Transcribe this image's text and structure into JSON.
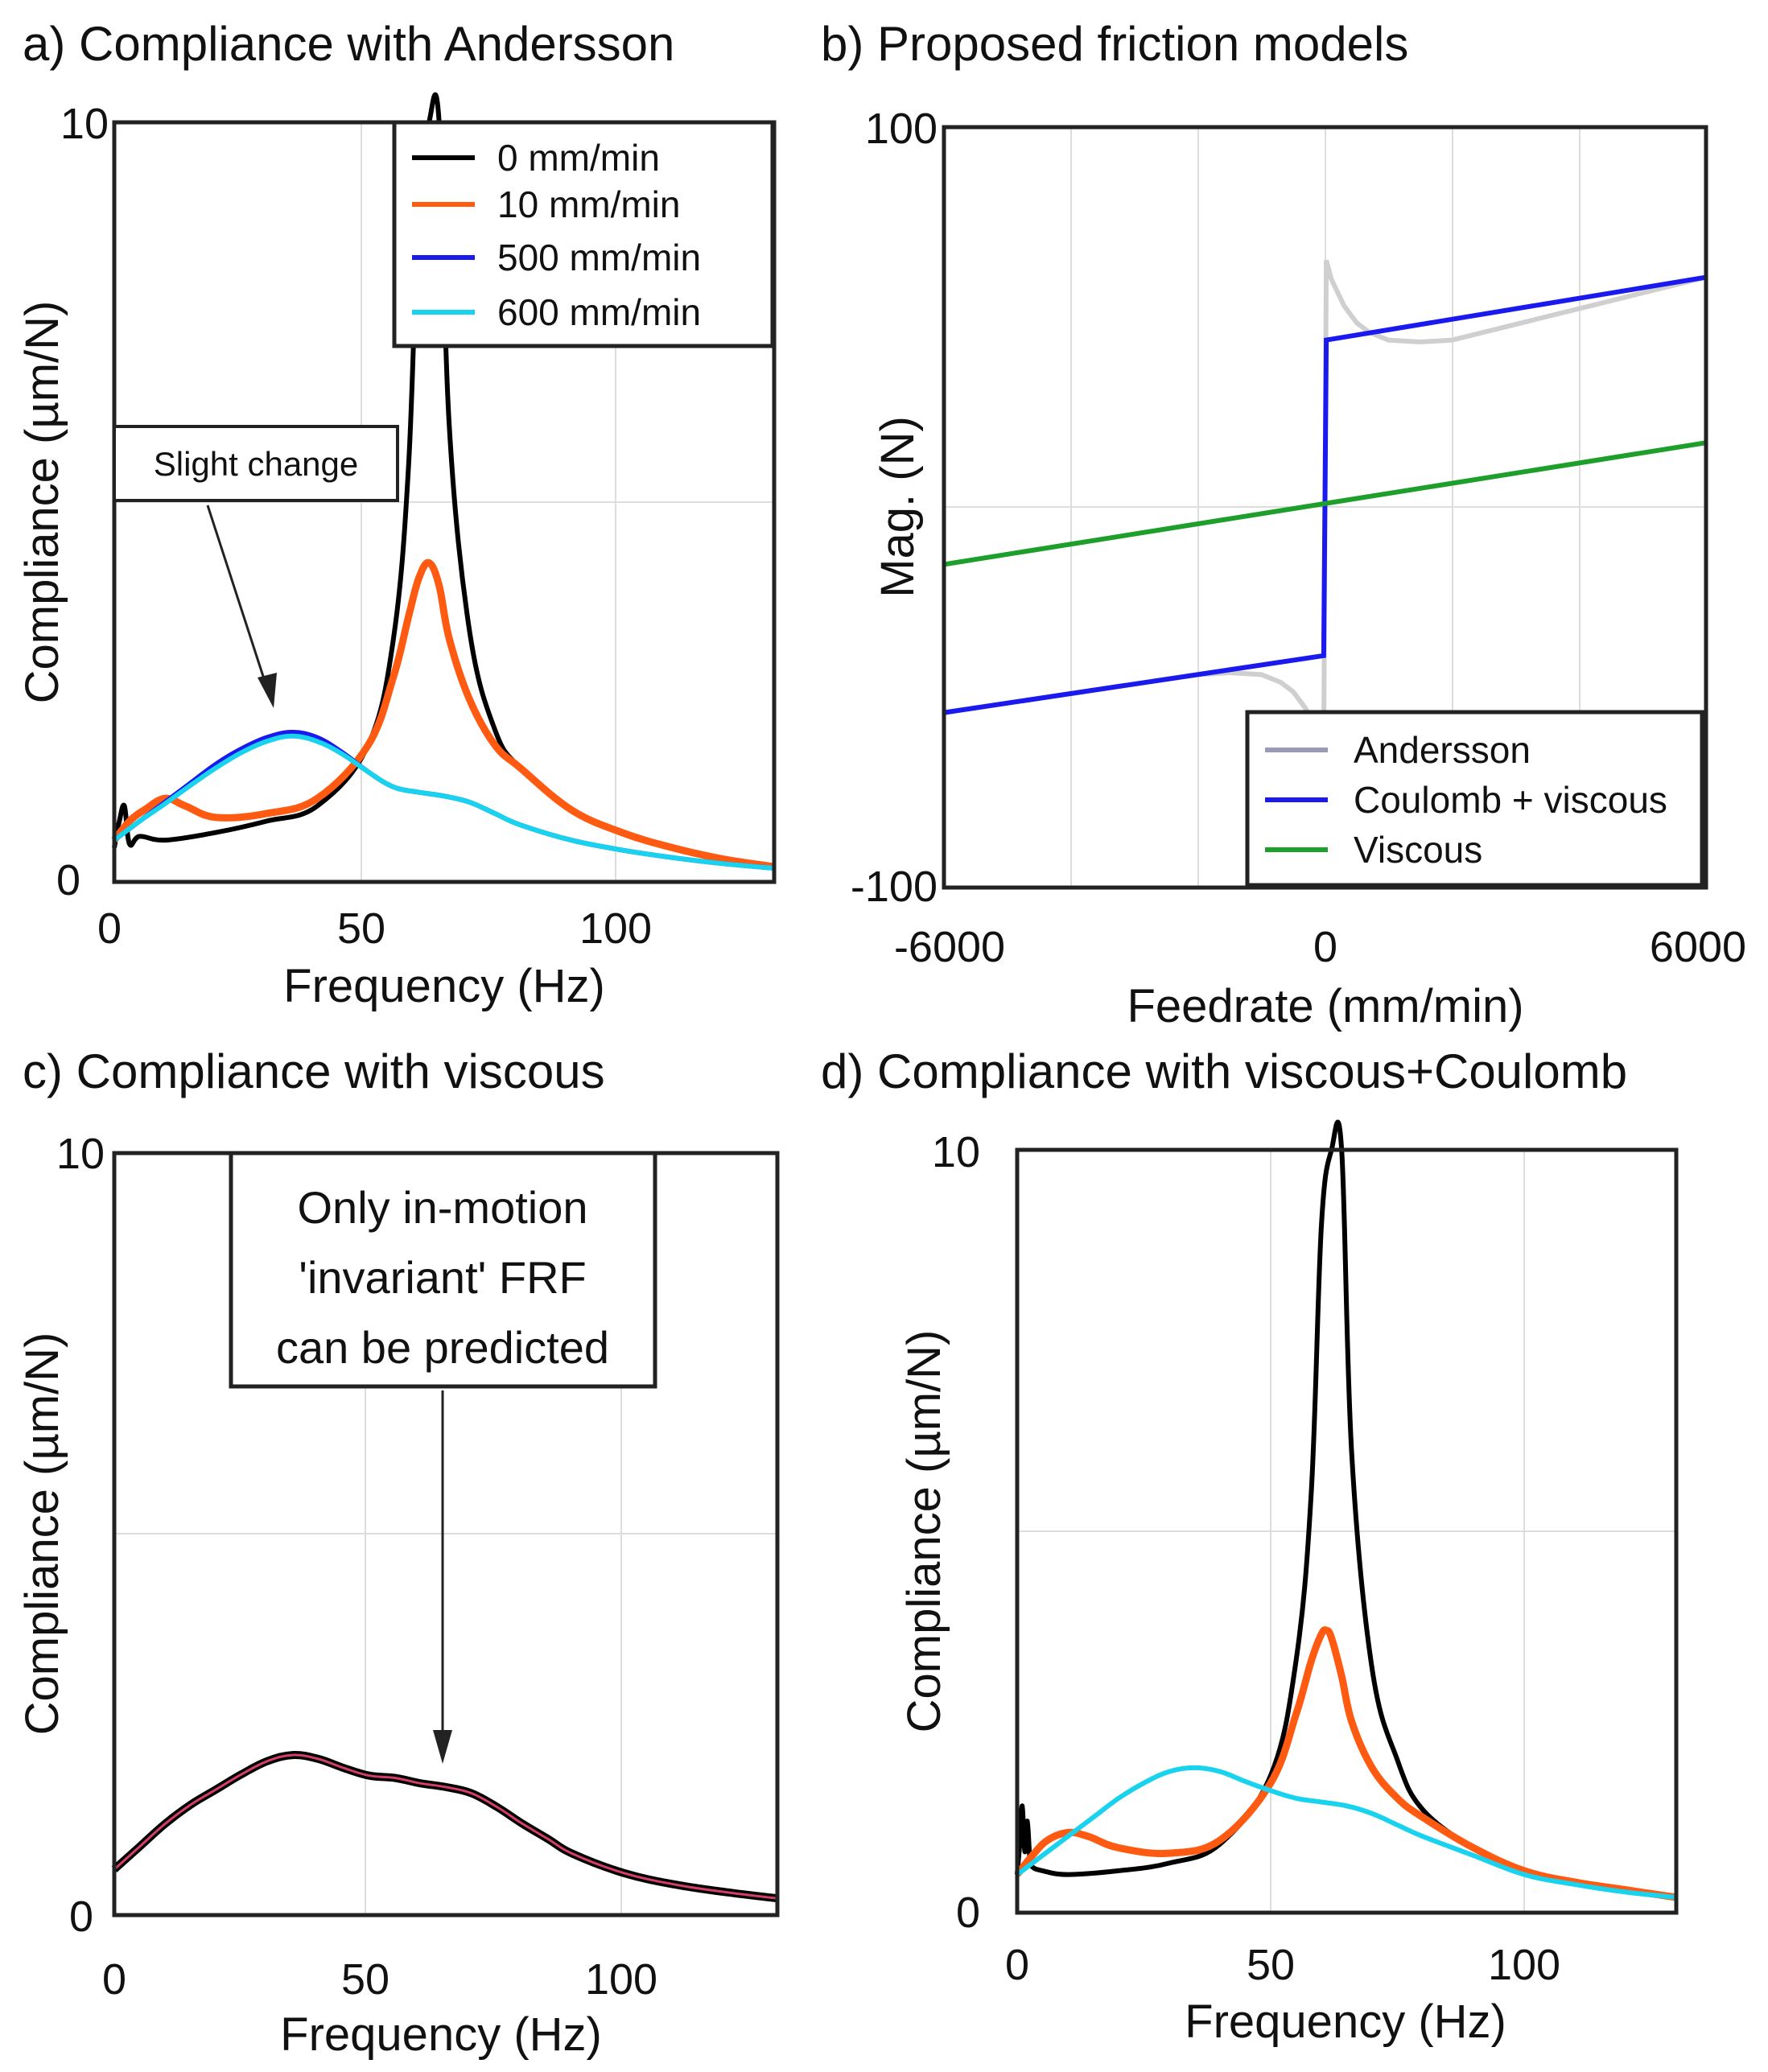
{
  "chart_data": [
    {
      "panel": "a",
      "type": "line",
      "title": "a) Compliance with Andersson",
      "xlabel": "Frequency (Hz)",
      "ylabel": "Compliance (µm/N)",
      "xlim": [
        0,
        130
      ],
      "ylim": [
        0,
        10
      ],
      "xticks": [
        "0",
        "50",
        "100"
      ],
      "yticks": [
        "0",
        "10"
      ],
      "grid": true,
      "legend": "top-right",
      "annotation": "Slight change",
      "series": [
        {
          "name": "0 mm/min",
          "color": "#000000",
          "x": [
            0,
            1,
            2,
            3,
            5,
            10,
            20,
            30,
            40,
            50,
            55,
            58,
            60,
            62,
            64,
            66,
            70,
            75,
            80,
            90,
            100,
            110,
            120,
            130
          ],
          "y": [
            0.45,
            0.8,
            1.0,
            0.5,
            0.6,
            0.55,
            0.65,
            0.8,
            1.0,
            1.8,
            3.2,
            5.5,
            9.0,
            10.0,
            10.0,
            6.0,
            3.3,
            2.0,
            1.5,
            0.95,
            0.65,
            0.45,
            0.3,
            0.2
          ]
        },
        {
          "name": "10 mm/min",
          "color": "#ff5a12",
          "x": [
            0,
            3,
            6,
            10,
            14,
            20,
            30,
            40,
            50,
            55,
            58,
            60,
            62,
            64,
            66,
            70,
            75,
            80,
            90,
            100,
            110,
            120,
            130
          ],
          "y": [
            0.55,
            0.8,
            0.95,
            1.1,
            1.0,
            0.85,
            0.9,
            1.1,
            1.8,
            2.7,
            3.5,
            4.0,
            4.2,
            3.9,
            3.2,
            2.4,
            1.8,
            1.5,
            0.95,
            0.65,
            0.45,
            0.3,
            0.2
          ]
        },
        {
          "name": "500 mm/min",
          "color": "#1a1aee",
          "x": [
            0,
            5,
            10,
            15,
            20,
            25,
            30,
            35,
            40,
            45,
            50,
            55,
            60,
            65,
            70,
            75,
            80,
            90,
            100,
            110,
            120,
            130
          ],
          "y": [
            0.55,
            0.8,
            1.05,
            1.3,
            1.55,
            1.75,
            1.9,
            1.97,
            1.9,
            1.7,
            1.45,
            1.25,
            1.18,
            1.13,
            1.05,
            0.9,
            0.75,
            0.55,
            0.42,
            0.32,
            0.24,
            0.18
          ]
        },
        {
          "name": "600 mm/min",
          "color": "#19d2ee",
          "x": [
            0,
            5,
            10,
            15,
            20,
            25,
            30,
            35,
            40,
            45,
            50,
            55,
            60,
            65,
            70,
            75,
            80,
            90,
            100,
            110,
            120,
            130
          ],
          "y": [
            0.55,
            0.8,
            1.03,
            1.27,
            1.5,
            1.7,
            1.85,
            1.92,
            1.85,
            1.68,
            1.45,
            1.25,
            1.18,
            1.13,
            1.05,
            0.9,
            0.75,
            0.55,
            0.42,
            0.32,
            0.24,
            0.18
          ]
        }
      ]
    },
    {
      "panel": "b",
      "type": "line",
      "title": "b) Proposed friction models",
      "xlabel": "Feedrate (mm/min)",
      "ylabel": "Mag. (N)",
      "xlim": [
        -6000,
        6000
      ],
      "ylim": [
        -100,
        100
      ],
      "xticks": [
        "-6000",
        "0",
        "6000"
      ],
      "yticks": [
        "-100",
        "100"
      ],
      "grid": true,
      "legend": "bottom-right",
      "series": [
        {
          "name": "Andersson",
          "color": "#bdbdd4",
          "x": [
            -6000,
            -2000,
            -1500,
            -1000,
            -700,
            -500,
            -300,
            -100,
            -20,
            0,
            20,
            100,
            300,
            500,
            700,
            1000,
            1500,
            2000,
            6000
          ],
          "y": [
            -54,
            -44,
            -43.5,
            -44,
            -46,
            -48.5,
            -53,
            -60,
            -65,
            0,
            65,
            60,
            53,
            48.5,
            46,
            44,
            43.5,
            44,
            60.5
          ]
        },
        {
          "name": "Coulomb + viscous",
          "color": "#1a1aee",
          "x": [
            -6000,
            -20,
            20,
            6000
          ],
          "y": [
            -54,
            -39,
            44,
            60.5
          ]
        },
        {
          "name": "Viscous",
          "color": "#1e9e2a",
          "x": [
            -6000,
            6000
          ],
          "y": [
            -15,
            17
          ]
        }
      ]
    },
    {
      "panel": "c",
      "type": "line",
      "title": "c) Compliance with viscous",
      "xlabel": "Frequency (Hz)",
      "ylabel": "Compliance (µm/N)",
      "xlim": [
        0,
        130
      ],
      "ylim": [
        0,
        10
      ],
      "xticks": [
        "0",
        "50",
        "100"
      ],
      "yticks": [
        "0",
        "10"
      ],
      "grid": true,
      "annotation": [
        "Only in-motion",
        "'invariant' FRF",
        "can be predicted"
      ],
      "series": [
        {
          "color": "#000000",
          "x": [
            0,
            5,
            10,
            15,
            20,
            25,
            30,
            35,
            40,
            45,
            50,
            55,
            60,
            65,
            70,
            75,
            80,
            85,
            90,
            100,
            110,
            120,
            130
          ],
          "y": [
            0.6,
            0.9,
            1.2,
            1.45,
            1.65,
            1.85,
            2.02,
            2.1,
            2.05,
            1.93,
            1.83,
            1.8,
            1.73,
            1.68,
            1.6,
            1.42,
            1.2,
            1.0,
            0.8,
            0.55,
            0.4,
            0.3,
            0.22
          ]
        },
        {
          "color": "#d43f6a",
          "x": [
            0,
            5,
            10,
            15,
            20,
            25,
            30,
            35,
            40,
            45,
            50,
            55,
            60,
            65,
            70,
            75,
            80,
            85,
            90,
            100,
            110,
            120,
            130
          ],
          "y": [
            0.6,
            0.9,
            1.2,
            1.45,
            1.65,
            1.85,
            2.02,
            2.1,
            2.05,
            1.93,
            1.83,
            1.8,
            1.73,
            1.68,
            1.6,
            1.42,
            1.2,
            1.0,
            0.8,
            0.55,
            0.4,
            0.3,
            0.22
          ]
        }
      ]
    },
    {
      "panel": "d",
      "type": "line",
      "title": "d) Compliance with viscous+Coulomb",
      "xlabel": "Frequency (Hz)",
      "ylabel": "Compliance (µm/N)",
      "xlim": [
        0,
        130
      ],
      "ylim": [
        0,
        10
      ],
      "xticks": [
        "0",
        "50",
        "100"
      ],
      "yticks": [
        "0",
        "10"
      ],
      "grid": true,
      "series": [
        {
          "color": "#000000",
          "x": [
            0,
            0.5,
            1,
            1.5,
            2,
            2.5,
            3,
            5,
            10,
            20,
            30,
            40,
            50,
            55,
            58,
            60,
            62,
            64,
            66,
            70,
            75,
            80,
            90,
            100,
            110,
            120,
            130
          ],
          "y": [
            0.5,
            0.9,
            1.4,
            0.8,
            1.2,
            0.7,
            0.6,
            0.55,
            0.5,
            0.55,
            0.65,
            0.9,
            1.8,
            3.3,
            5.5,
            9.0,
            10.0,
            10.0,
            6.0,
            3.2,
            2.0,
            1.35,
            0.85,
            0.55,
            0.4,
            0.3,
            0.2
          ]
        },
        {
          "color": "#ff5a12",
          "x": [
            0,
            3,
            6,
            10,
            14,
            20,
            30,
            40,
            50,
            55,
            58,
            60,
            61,
            62,
            64,
            66,
            70,
            75,
            80,
            90,
            100,
            110,
            120,
            130
          ],
          "y": [
            0.5,
            0.75,
            0.95,
            1.05,
            1.0,
            0.85,
            0.78,
            0.95,
            1.7,
            2.6,
            3.3,
            3.65,
            3.7,
            3.6,
            3.1,
            2.5,
            1.9,
            1.5,
            1.25,
            0.85,
            0.55,
            0.4,
            0.3,
            0.2
          ]
        },
        {
          "color": "#19d2ee",
          "x": [
            0,
            5,
            10,
            15,
            20,
            25,
            30,
            35,
            40,
            45,
            50,
            55,
            60,
            65,
            70,
            75,
            80,
            90,
            100,
            110,
            120,
            130
          ],
          "y": [
            0.5,
            0.75,
            1.0,
            1.25,
            1.5,
            1.7,
            1.85,
            1.9,
            1.85,
            1.72,
            1.6,
            1.5,
            1.45,
            1.4,
            1.3,
            1.15,
            1.0,
            0.75,
            0.5,
            0.37,
            0.27,
            0.2
          ]
        }
      ]
    }
  ]
}
